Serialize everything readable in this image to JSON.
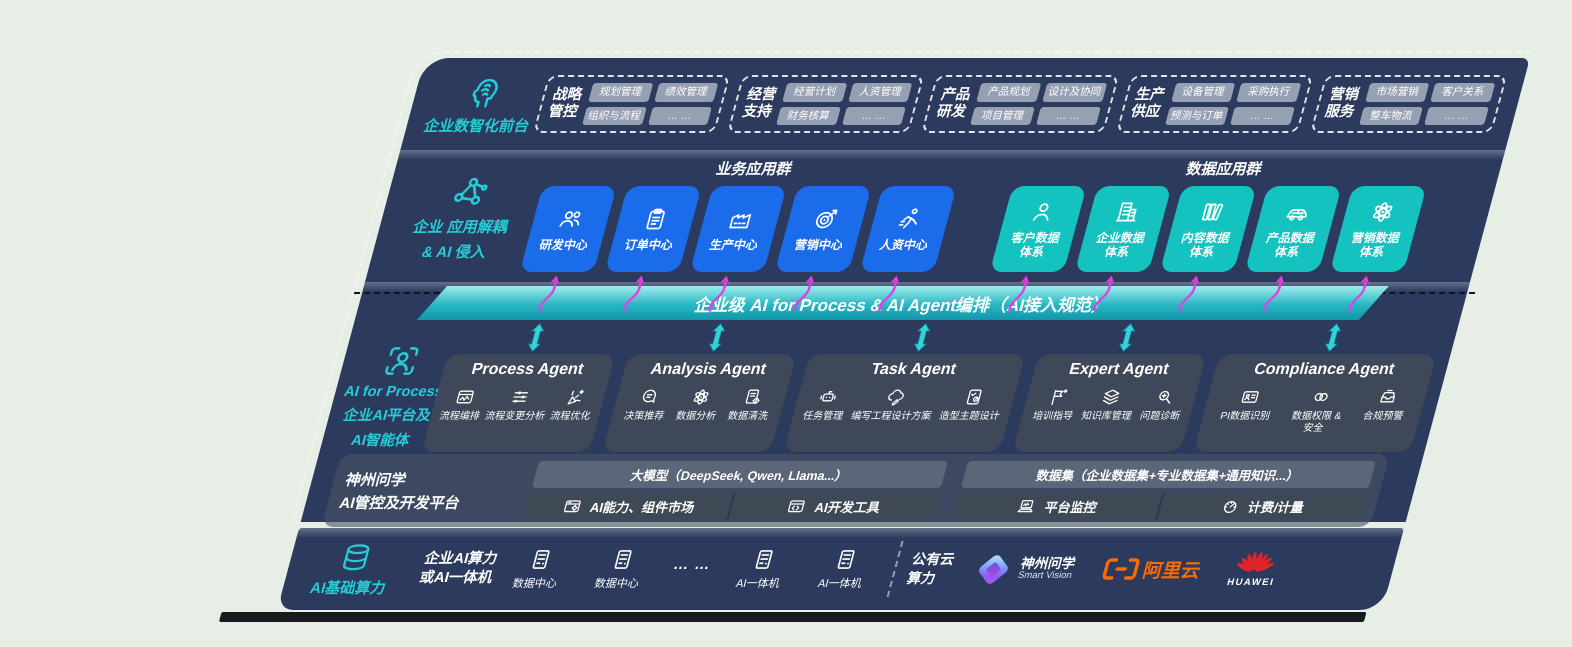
{
  "colors": {
    "navy": "#2b3a5d",
    "accent_teal": "#27ccd6",
    "box_blue": "#1a6ceb",
    "box_teal": "#14c3c0",
    "magenta": "#e23fe2",
    "pill_gray": "#96a0b3",
    "alibaba_orange": "#ff6a00",
    "huawei_red": "#e02428"
  },
  "front": {
    "label": "企业数智化前台",
    "groups": [
      {
        "title_lines": [
          "战略",
          "管控"
        ],
        "tags": [
          "规划管理",
          "绩效管理",
          "组织与流程",
          "… …"
        ]
      },
      {
        "title_lines": [
          "经营",
          "支持"
        ],
        "tags": [
          "经营计划",
          "人资管理",
          "财务核算",
          "… …"
        ]
      },
      {
        "title_lines": [
          "产品",
          "研发"
        ],
        "tags": [
          "产品规划",
          "设计及协同",
          "项目管理",
          "… …"
        ]
      },
      {
        "title_lines": [
          "生产",
          "供应"
        ],
        "tags": [
          "设备管理",
          "采购执行",
          "预测与订单",
          "… …"
        ]
      },
      {
        "title_lines": [
          "营销",
          "服务"
        ],
        "tags": [
          "市场营销",
          "客户关系",
          "整车物流",
          "… …"
        ]
      }
    ]
  },
  "apps": {
    "label_lines": [
      "企业 应用解耦",
      "& AI 侵入"
    ],
    "business": {
      "title": "业务应用群",
      "items": [
        {
          "label_lines": [
            "研发中心"
          ],
          "icon": "people"
        },
        {
          "label_lines": [
            "订单中心"
          ],
          "icon": "clipboard"
        },
        {
          "label_lines": [
            "生产中心"
          ],
          "icon": "factory"
        },
        {
          "label_lines": [
            "营销中心"
          ],
          "icon": "target"
        },
        {
          "label_lines": [
            "人资中心"
          ],
          "icon": "runner"
        }
      ]
    },
    "data": {
      "title": "数据应用群",
      "items": [
        {
          "label_lines": [
            "客户数据",
            "体系"
          ],
          "icon": "person"
        },
        {
          "label_lines": [
            "企业数据",
            "体系"
          ],
          "icon": "building"
        },
        {
          "label_lines": [
            "内容数据",
            "体系"
          ],
          "icon": "books"
        },
        {
          "label_lines": [
            "产品数据",
            "体系"
          ],
          "icon": "car"
        },
        {
          "label_lines": [
            "营销数据",
            "体系"
          ],
          "icon": "atom"
        }
      ]
    }
  },
  "banner": {
    "text": "企业级 AI for Process & AI Agent编排（AI接入规范）"
  },
  "ai": {
    "label_lines": [
      "AI for Process",
      "企业AI平台及",
      "AI智能体"
    ],
    "agents": [
      {
        "title": "Process Agent",
        "items": [
          {
            "label_lines": [
              "流程编排"
            ],
            "icon": "flow-chart"
          },
          {
            "label_lines": [
              "流程变更分析"
            ],
            "icon": "sliders"
          },
          {
            "label_lines": [
              "流程优化"
            ],
            "icon": "optimize"
          }
        ]
      },
      {
        "title": "Analysis Agent",
        "items": [
          {
            "label_lines": [
              "决策推荐"
            ],
            "icon": "decision-chat"
          },
          {
            "label_lines": [
              "数据分析"
            ],
            "icon": "atom"
          },
          {
            "label_lines": [
              "数据清洗"
            ],
            "icon": "data-clean"
          }
        ]
      },
      {
        "title": "Task Agent",
        "items": [
          {
            "label_lines": [
              "任务管理"
            ],
            "icon": "task-robot"
          },
          {
            "label_lines": [
              "编写工程设计方案"
            ],
            "icon": "cloud-design"
          },
          {
            "label_lines": [
              "造型主题设计"
            ],
            "icon": "theme-tablet"
          }
        ]
      },
      {
        "title": "Expert Agent",
        "items": [
          {
            "label_lines": [
              "培训指导"
            ],
            "icon": "training-flag"
          },
          {
            "label_lines": [
              "知识库管理"
            ],
            "icon": "knowledge-layers"
          },
          {
            "label_lines": [
              "问题诊断"
            ],
            "icon": "diagnose-magnifier"
          }
        ]
      },
      {
        "title": "Compliance Agent",
        "items": [
          {
            "label_lines": [
              "PI数据识别"
            ],
            "icon": "pi-idcard"
          },
          {
            "label_lines": [
              "数据权限 &",
              "安全"
            ],
            "icon": "permission-link"
          },
          {
            "label_lines": [
              "合规预警"
            ],
            "icon": "compliance-inbox"
          }
        ]
      }
    ],
    "platform": {
      "label_lines": [
        "神州问学",
        "AI管控及开发平台"
      ],
      "columns": [
        {
          "header": "大模型（DeepSeek, Qwen, Llama...）",
          "cells": [
            {
              "label": "AI能力、组件市场",
              "icon": "window-gear"
            },
            {
              "label": "AI开发工具",
              "icon": "window-code"
            }
          ]
        },
        {
          "header": "数据集（企业数据集+专业数据集+通用知识...）",
          "cells": [
            {
              "label": "平台监控",
              "icon": "monitor-laptop"
            },
            {
              "label": "计费/计量",
              "icon": "billing-gauge"
            }
          ]
        }
      ]
    }
  },
  "infra": {
    "label": "AI基础算力",
    "compute_lines": [
      "企业AI算力",
      "或AI一体机"
    ],
    "nodes": [
      {
        "label": "数据中心",
        "icon": "server"
      },
      {
        "label": "数据中心",
        "icon": "server"
      },
      {
        "label": "… …",
        "icon": null
      },
      {
        "label": "AI一体机",
        "icon": "server"
      },
      {
        "label": "AI一体机",
        "icon": "server"
      }
    ],
    "cloud_lines": [
      "公有云",
      "算力"
    ],
    "logos": {
      "smart_vision": {
        "line1": "神州问学",
        "line2": "Smart Vision"
      },
      "aliyun": {
        "text": "阿里云"
      },
      "huawei": {
        "text": "HUAWEI"
      }
    }
  }
}
